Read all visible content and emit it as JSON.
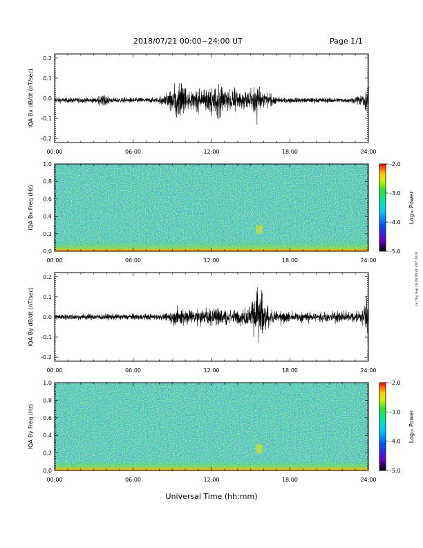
{
  "header": {
    "title": "2018/07/21  00:00−24:00 UT",
    "page": "Page 1/1"
  },
  "footer": {
    "xlabel": "Universal Time (hh:mm)",
    "side_note": "rxl Thu Sep 19 09:49:40 EDT 2019"
  },
  "colors": {
    "trace": "#000000",
    "spectrogram_background": "#2fe0a0"
  },
  "chart_data": [
    {
      "type": "line",
      "title": "",
      "xlabel": "",
      "ylabel": "IQA Bx dB/dt (nT/sec)",
      "xlim": [
        0,
        24
      ],
      "ylim": [
        -0.22,
        0.22
      ],
      "x_ticks": [
        "00:00",
        "06:00",
        "12:00",
        "18:00",
        "24:00"
      ],
      "y_ticks": [
        "-0.2",
        "-0.1",
        "0.0",
        "0.1",
        "0.2"
      ],
      "y_tick_values": [
        -0.2,
        -0.1,
        0.0,
        0.1,
        0.2
      ],
      "baseline": -0.01,
      "noise_amplitude": 0.006,
      "series": [
        {
          "x": [
            0,
            1.5,
            3.0,
            3.7,
            4.5,
            6.0,
            7.5,
            8.0,
            8.5,
            8.8,
            9.0,
            9.3,
            9.5,
            9.8,
            10.0,
            10.3,
            10.6,
            11.0,
            11.3,
            11.6,
            12.0,
            12.3,
            12.6,
            13.0,
            13.3,
            13.7,
            14.0,
            14.4,
            14.8,
            15.1,
            15.3,
            15.5,
            15.6,
            15.8,
            16.0,
            16.4,
            17.0,
            18.0,
            19.0,
            20.0,
            21.0,
            22.0,
            23.0,
            23.5,
            23.8,
            23.9,
            24.0
          ],
          "amplitude": [
            0.01,
            0.01,
            0.012,
            0.03,
            0.012,
            0.012,
            0.015,
            0.02,
            0.04,
            0.05,
            0.07,
            0.11,
            0.1,
            0.09,
            0.07,
            0.05,
            0.06,
            0.07,
            0.05,
            0.06,
            0.08,
            0.06,
            0.1,
            0.06,
            0.05,
            0.07,
            0.04,
            0.04,
            0.05,
            0.06,
            0.1,
            0.125,
            0.09,
            0.07,
            0.05,
            0.03,
            0.02,
            0.015,
            0.015,
            0.015,
            0.015,
            0.02,
            0.02,
            0.03,
            0.06,
            0.11,
            0.04
          ]
        }
      ]
    },
    {
      "type": "heatmap",
      "title": "",
      "xlabel": "",
      "ylabel": "IQA Bx Freq (Hz)",
      "xlim": [
        0,
        24
      ],
      "ylim": [
        0,
        1.0
      ],
      "x_ticks": [
        "00:00",
        "06:00",
        "12:00",
        "18:00",
        "24:00"
      ],
      "y_ticks": [
        "0.0",
        "0.2",
        "0.4",
        "0.6",
        "0.8",
        "1.0"
      ],
      "y_tick_values": [
        0,
        0.2,
        0.4,
        0.6,
        0.8,
        1.0
      ],
      "colorbar": {
        "label": "Log₁₀ Power",
        "range": [
          -5.0,
          -2.0
        ],
        "ticks": [
          "-2.0",
          "-3.0",
          "-4.0",
          "-5.0"
        ],
        "tick_values": [
          -2.0,
          -3.0,
          -4.0,
          -5.0
        ]
      },
      "background_log_power": -3.6,
      "low_freq_enhancement_log_power": -2.9,
      "event": {
        "time_range": [
          15.4,
          15.9
        ],
        "freq_range": [
          0.2,
          0.3
        ]
      }
    },
    {
      "type": "line",
      "title": "",
      "xlabel": "",
      "ylabel": "IQA By dB/dt (nT/sec)",
      "xlim": [
        0,
        24
      ],
      "ylim": [
        -0.22,
        0.22
      ],
      "x_ticks": [
        "00:00",
        "06:00",
        "12:00",
        "18:00",
        "24:00"
      ],
      "y_ticks": [
        "-0.2",
        "-0.1",
        "0.0",
        "0.1",
        "0.2"
      ],
      "y_tick_values": [
        -0.2,
        -0.1,
        0.0,
        0.1,
        0.2
      ],
      "baseline": 0.0,
      "noise_amplitude": 0.007,
      "series": [
        {
          "x": [
            0,
            1.5,
            3.0,
            4.5,
            6.0,
            7.5,
            8.5,
            9.0,
            9.5,
            10.0,
            10.5,
            11.0,
            11.5,
            12.0,
            12.5,
            13.0,
            13.5,
            14.0,
            14.5,
            15.0,
            15.3,
            15.5,
            15.7,
            15.9,
            16.1,
            16.4,
            16.8,
            17.2,
            18.0,
            19.0,
            20.0,
            21.0,
            22.0,
            23.0,
            23.5,
            23.8,
            23.9,
            24.0
          ],
          "amplitude": [
            0.012,
            0.015,
            0.015,
            0.012,
            0.012,
            0.015,
            0.02,
            0.035,
            0.05,
            0.04,
            0.035,
            0.045,
            0.04,
            0.04,
            0.045,
            0.04,
            0.035,
            0.04,
            0.04,
            0.06,
            0.1,
            0.165,
            0.15,
            0.13,
            0.08,
            0.05,
            0.035,
            0.03,
            0.025,
            0.025,
            0.02,
            0.025,
            0.025,
            0.025,
            0.04,
            0.07,
            0.13,
            0.05
          ]
        }
      ]
    },
    {
      "type": "heatmap",
      "title": "",
      "xlabel": "",
      "ylabel": "IQA By Freq (Hz)",
      "xlim": [
        0,
        24
      ],
      "ylim": [
        0,
        1.0
      ],
      "x_ticks": [
        "00:00",
        "06:00",
        "12:00",
        "18:00",
        "24:00"
      ],
      "y_ticks": [
        "0.0",
        "0.2",
        "0.4",
        "0.6",
        "0.8",
        "1.0"
      ],
      "y_tick_values": [
        0,
        0.2,
        0.4,
        0.6,
        0.8,
        1.0
      ],
      "colorbar": {
        "label": "Log₁₀ Power",
        "range": [
          -5.0,
          -2.0
        ],
        "ticks": [
          "-2.0",
          "-3.0",
          "-4.0",
          "-5.0"
        ],
        "tick_values": [
          -2.0,
          -3.0,
          -4.0,
          -5.0
        ]
      },
      "background_log_power": -3.6,
      "low_freq_enhancement_log_power": -2.9,
      "event": {
        "time_range": [
          15.4,
          15.9
        ],
        "freq_range": [
          0.2,
          0.3
        ]
      }
    }
  ]
}
